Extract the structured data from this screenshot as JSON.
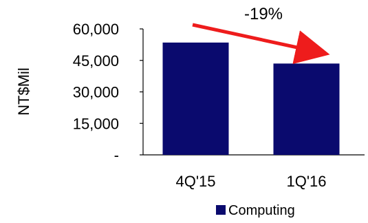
{
  "chart_data": {
    "type": "bar",
    "categories": [
      "4Q'15",
      "1Q'16"
    ],
    "series": [
      {
        "name": "Computing",
        "values": [
          53500,
          43500
        ]
      }
    ],
    "title": "",
    "xlabel": "",
    "ylabel": "NT$Mil",
    "ylim": [
      0,
      60000
    ],
    "yticks": [
      0,
      15000,
      30000,
      45000,
      60000
    ],
    "ytick_labels": [
      "-",
      "15,000",
      "30,000",
      "45,000",
      "60,000"
    ],
    "annotation": {
      "text": "-19%",
      "arrow_color": "#ee1c1c"
    },
    "bar_color": "#0a0a6e",
    "legend": {
      "position": "bottom"
    },
    "grid": false
  }
}
